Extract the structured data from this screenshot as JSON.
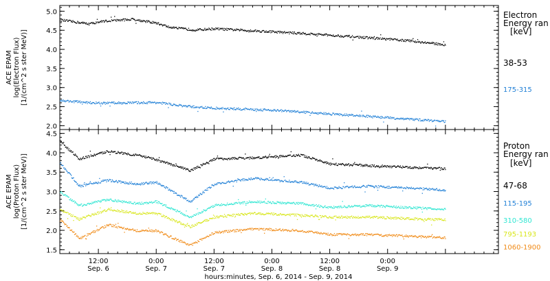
{
  "x_axis": {
    "tick_labels": [
      {
        "time": "12:00",
        "date": "Sep. 6"
      },
      {
        "time": "0:00",
        "date": "Sep. 7"
      },
      {
        "time": "12:00",
        "date": "Sep. 7"
      },
      {
        "time": "0:00",
        "date": "Sep. 8"
      },
      {
        "time": "12:00",
        "date": "Sep. 8"
      },
      {
        "time": "0:00",
        "date": "Sep. 9"
      }
    ],
    "label": "hours:minutes, Sep.  6, 2014 - Sep.  9, 2014"
  },
  "colors": {
    "black": "#000000",
    "blue": "#1f7fd6",
    "cyan": "#2ee6d2",
    "yellow": "#d8e61a",
    "orange": "#f08a16"
  },
  "chart_data": [
    {
      "type": "scatter",
      "panel": "electron",
      "ylabel": "ACE EPAM log(Electron Flux) [1/(cm^2 s ster MeV)]",
      "ylim": [
        1.9,
        5.15
      ],
      "yticks": [
        2.0,
        2.5,
        3.0,
        3.5,
        4.0,
        4.5,
        5.0
      ],
      "xlim": [
        "2014-09-06 04:00",
        "2014-09-09 23:00"
      ],
      "legend_title": [
        "Electron",
        "Energy ran",
        "[keV]"
      ],
      "series": [
        {
          "name": "38-53",
          "color": "#000000",
          "x": [
            "2014-09-06 04:00",
            "2014-09-06 10:00",
            "2014-09-06 13:00",
            "2014-09-06 19:00",
            "2014-09-07 00:00",
            "2014-09-07 03:00",
            "2014-09-07 08:00",
            "2014-09-07 12:00",
            "2014-09-07 20:00",
            "2014-09-08 06:00",
            "2014-09-08 16:00",
            "2014-09-09 04:00",
            "2014-09-09 12:00"
          ],
          "values": [
            4.78,
            4.68,
            4.75,
            4.8,
            4.7,
            4.58,
            4.52,
            4.55,
            4.5,
            4.43,
            4.35,
            4.24,
            4.13
          ]
        },
        {
          "name": "175-315",
          "color": "#1f7fd6",
          "x": [
            "2014-09-06 04:00",
            "2014-09-06 12:00",
            "2014-09-07 00:00",
            "2014-09-07 06:00",
            "2014-09-07 12:00",
            "2014-09-08 00:00",
            "2014-09-08 12:00",
            "2014-09-09 00:00",
            "2014-09-09 12:00"
          ],
          "values": [
            2.67,
            2.6,
            2.62,
            2.52,
            2.47,
            2.42,
            2.32,
            2.22,
            2.12
          ]
        }
      ]
    },
    {
      "type": "scatter",
      "panel": "proton",
      "ylabel": "ACE EPAM log(Proton Flux) [1/(cm^2 s ster MeV)]",
      "ylim": [
        1.4,
        4.6
      ],
      "yticks": [
        1.5,
        2.0,
        2.5,
        3.0,
        3.5,
        4.0,
        4.5
      ],
      "xlim": [
        "2014-09-06 04:00",
        "2014-09-09 23:00"
      ],
      "legend_title": [
        "Proton",
        "Energy ran",
        "[keV]"
      ],
      "series": [
        {
          "name": "47-68",
          "color": "#000000",
          "x": [
            "2014-09-06 04:00",
            "2014-09-06 08:00",
            "2014-09-06 14:00",
            "2014-09-06 20:00",
            "2014-09-07 00:00",
            "2014-09-07 07:00",
            "2014-09-07 12:00",
            "2014-09-07 20:00",
            "2014-09-08 06:00",
            "2014-09-08 12:00",
            "2014-09-08 20:00",
            "2014-09-09 12:00"
          ],
          "values": [
            4.3,
            3.85,
            4.05,
            3.95,
            3.83,
            3.55,
            3.85,
            3.88,
            3.95,
            3.72,
            3.68,
            3.6
          ]
        },
        {
          "name": "115-195",
          "color": "#1f7fd6",
          "x": [
            "2014-09-06 04:00",
            "2014-09-06 08:00",
            "2014-09-06 14:00",
            "2014-09-06 20:00",
            "2014-09-07 00:00",
            "2014-09-07 07:00",
            "2014-09-07 12:00",
            "2014-09-07 20:00",
            "2014-09-08 06:00",
            "2014-09-08 12:00",
            "2014-09-08 20:00",
            "2014-09-09 12:00"
          ],
          "values": [
            3.75,
            3.15,
            3.3,
            3.2,
            3.25,
            2.75,
            3.2,
            3.35,
            3.25,
            3.1,
            3.15,
            3.05
          ]
        },
        {
          "name": "310-580",
          "color": "#2ee6d2",
          "x": [
            "2014-09-06 04:00",
            "2014-09-06 08:00",
            "2014-09-06 14:00",
            "2014-09-06 20:00",
            "2014-09-07 00:00",
            "2014-09-07 07:00",
            "2014-09-07 12:00",
            "2014-09-07 20:00",
            "2014-09-08 06:00",
            "2014-09-08 12:00",
            "2014-09-08 20:00",
            "2014-09-09 12:00"
          ],
          "values": [
            3.0,
            2.65,
            2.8,
            2.7,
            2.75,
            2.35,
            2.65,
            2.75,
            2.7,
            2.6,
            2.65,
            2.55
          ]
        },
        {
          "name": "795-1193",
          "color": "#d8e61a",
          "x": [
            "2014-09-06 04:00",
            "2014-09-06 08:00",
            "2014-09-06 14:00",
            "2014-09-06 20:00",
            "2014-09-07 00:00",
            "2014-09-07 07:00",
            "2014-09-07 12:00",
            "2014-09-07 20:00",
            "2014-09-08 06:00",
            "2014-09-08 12:00",
            "2014-09-08 20:00",
            "2014-09-09 12:00"
          ],
          "values": [
            2.55,
            2.3,
            2.55,
            2.45,
            2.45,
            2.1,
            2.35,
            2.45,
            2.4,
            2.35,
            2.35,
            2.28
          ]
        },
        {
          "name": "1060-1900",
          "color": "#f08a16",
          "x": [
            "2014-09-06 04:00",
            "2014-09-06 08:00",
            "2014-09-06 14:00",
            "2014-09-06 20:00",
            "2014-09-07 00:00",
            "2014-09-07 07:00",
            "2014-09-07 12:00",
            "2014-09-07 20:00",
            "2014-09-08 06:00",
            "2014-09-08 12:00",
            "2014-09-08 20:00",
            "2014-09-09 12:00"
          ],
          "values": [
            2.3,
            1.8,
            2.15,
            2.0,
            2.0,
            1.62,
            1.95,
            2.05,
            2.0,
            1.9,
            1.9,
            1.82
          ]
        }
      ]
    }
  ]
}
